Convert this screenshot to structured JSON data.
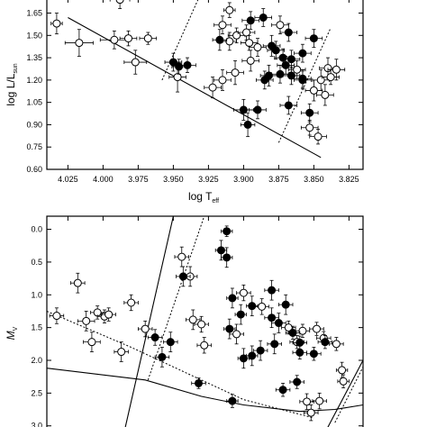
{
  "chart_data": [
    {
      "type": "scatter",
      "xlabel": {
        "main": "log T",
        "sub": "eff"
      },
      "ylabel": {
        "main": "log L/L",
        "sub": "sun"
      },
      "xlim": [
        4.04,
        3.815
      ],
      "ylim": [
        0.6,
        1.75
      ],
      "x_ticks": [
        "4.025",
        "4.000",
        "3.975",
        "3.950",
        "3.925",
        "3.900",
        "3.875",
        "3.850",
        "3.825"
      ],
      "x_tick_values": [
        4.025,
        4.0,
        3.975,
        3.95,
        3.925,
        3.9,
        3.875,
        3.85,
        3.825
      ],
      "y_ticks": [
        "0.60",
        "0.75",
        "0.90",
        "1.05",
        "1.20",
        "1.35",
        "1.50",
        "1.65"
      ],
      "y_tick_values": [
        0.6,
        0.75,
        0.9,
        1.05,
        1.2,
        1.35,
        1.5,
        1.65
      ],
      "lines": [
        {
          "style": "solid",
          "points": [
            [
              4.025,
              1.62
            ],
            [
              3.845,
              0.68
            ]
          ]
        },
        {
          "style": "dotted",
          "points": [
            [
              3.958,
              1.2
            ],
            [
              3.932,
              1.75
            ]
          ]
        },
        {
          "style": "dotted",
          "points": [
            [
              3.875,
              0.78
            ],
            [
              3.838,
              1.55
            ]
          ]
        }
      ],
      "series": [
        {
          "marker": "open",
          "points": [
            {
              "x": 4.033,
              "y": 1.58,
              "xe": 0.004,
              "ye": 0.07
            },
            {
              "x": 3.988,
              "y": 1.74,
              "xe": 0.007,
              "ye": 0.06
            },
            {
              "x": 4.017,
              "y": 1.45,
              "xe": 0.01,
              "ye": 0.09
            },
            {
              "x": 3.992,
              "y": 1.47,
              "xe": 0.01,
              "ye": 0.06
            },
            {
              "x": 3.982,
              "y": 1.48,
              "xe": 0.006,
              "ye": 0.05
            },
            {
              "x": 3.968,
              "y": 1.48,
              "xe": 0.006,
              "ye": 0.04
            },
            {
              "x": 3.977,
              "y": 1.32,
              "xe": 0.008,
              "ye": 0.08
            },
            {
              "x": 3.947,
              "y": 1.22,
              "xe": 0.006,
              "ye": 0.1
            },
            {
              "x": 3.91,
              "y": 1.67,
              "xe": 0.004,
              "ye": 0.05
            },
            {
              "x": 3.915,
              "y": 1.57,
              "xe": 0.006,
              "ye": 0.06
            },
            {
              "x": 3.905,
              "y": 1.5,
              "xe": 0.006,
              "ye": 0.05
            },
            {
              "x": 3.91,
              "y": 1.46,
              "xe": 0.005,
              "ye": 0.06
            },
            {
              "x": 3.898,
              "y": 1.52,
              "xe": 0.006,
              "ye": 0.05
            },
            {
              "x": 3.896,
              "y": 1.45,
              "xe": 0.006,
              "ye": 0.05
            },
            {
              "x": 3.89,
              "y": 1.42,
              "xe": 0.006,
              "ye": 0.06
            },
            {
              "x": 3.874,
              "y": 1.57,
              "xe": 0.006,
              "ye": 0.06
            },
            {
              "x": 3.906,
              "y": 1.25,
              "xe": 0.006,
              "ye": 0.08
            },
            {
              "x": 3.895,
              "y": 1.33,
              "xe": 0.006,
              "ye": 0.07
            },
            {
              "x": 3.915,
              "y": 1.2,
              "xe": 0.006,
              "ye": 0.07
            },
            {
              "x": 3.922,
              "y": 1.15,
              "xe": 0.006,
              "ye": 0.07
            },
            {
              "x": 3.862,
              "y": 1.27,
              "xe": 0.006,
              "ye": 0.06
            },
            {
              "x": 3.845,
              "y": 1.2,
              "xe": 0.006,
              "ye": 0.07
            },
            {
              "x": 3.84,
              "y": 1.28,
              "xe": 0.006,
              "ye": 0.07
            },
            {
              "x": 3.838,
              "y": 1.22,
              "xe": 0.006,
              "ye": 0.05
            },
            {
              "x": 3.842,
              "y": 1.1,
              "xe": 0.006,
              "ye": 0.07
            },
            {
              "x": 3.85,
              "y": 1.13,
              "xe": 0.006,
              "ye": 0.07
            },
            {
              "x": 3.853,
              "y": 0.88,
              "xe": 0.006,
              "ye": 0.05
            },
            {
              "x": 3.847,
              "y": 0.82,
              "xe": 0.006,
              "ye": 0.05
            },
            {
              "x": 3.834,
              "y": 1.27,
              "xe": 0.006,
              "ye": 0.07
            }
          ]
        },
        {
          "marker": "filled",
          "points": [
            {
              "x": 3.95,
              "y": 1.32,
              "xe": 0.006,
              "ye": 0.06
            },
            {
              "x": 3.946,
              "y": 1.29,
              "xe": 0.005,
              "ye": 0.05
            },
            {
              "x": 3.94,
              "y": 1.3,
              "xe": 0.006,
              "ye": 0.05
            },
            {
              "x": 3.917,
              "y": 1.47,
              "xe": 0.005,
              "ye": 0.07
            },
            {
              "x": 3.895,
              "y": 1.6,
              "xe": 0.006,
              "ye": 0.06
            },
            {
              "x": 3.886,
              "y": 1.62,
              "xe": 0.006,
              "ye": 0.06
            },
            {
              "x": 3.868,
              "y": 1.52,
              "xe": 0.006,
              "ye": 0.06
            },
            {
              "x": 3.85,
              "y": 1.48,
              "xe": 0.006,
              "ye": 0.06
            },
            {
              "x": 3.88,
              "y": 1.43,
              "xe": 0.006,
              "ye": 0.07
            },
            {
              "x": 3.877,
              "y": 1.4,
              "xe": 0.006,
              "ye": 0.06
            },
            {
              "x": 3.858,
              "y": 1.38,
              "xe": 0.006,
              "ye": 0.06
            },
            {
              "x": 3.872,
              "y": 1.35,
              "xe": 0.006,
              "ye": 0.06
            },
            {
              "x": 3.866,
              "y": 1.34,
              "xe": 0.006,
              "ye": 0.06
            },
            {
              "x": 3.87,
              "y": 1.3,
              "xe": 0.006,
              "ye": 0.06
            },
            {
              "x": 3.882,
              "y": 1.23,
              "xe": 0.006,
              "ye": 0.07
            },
            {
              "x": 3.874,
              "y": 1.24,
              "xe": 0.006,
              "ye": 0.06
            },
            {
              "x": 3.866,
              "y": 1.23,
              "xe": 0.006,
              "ye": 0.06
            },
            {
              "x": 3.858,
              "y": 1.21,
              "xe": 0.006,
              "ye": 0.06
            },
            {
              "x": 3.885,
              "y": 1.2,
              "xe": 0.006,
              "ye": 0.06
            },
            {
              "x": 3.9,
              "y": 1.0,
              "xe": 0.007,
              "ye": 0.07
            },
            {
              "x": 3.89,
              "y": 1.0,
              "xe": 0.006,
              "ye": 0.06
            },
            {
              "x": 3.897,
              "y": 0.9,
              "xe": 0.005,
              "ye": 0.08
            },
            {
              "x": 3.868,
              "y": 1.03,
              "xe": 0.006,
              "ye": 0.06
            },
            {
              "x": 3.853,
              "y": 0.98,
              "xe": 0.006,
              "ye": 0.06
            },
            {
              "x": 3.858,
              "y": 1.2,
              "xe": 0.006,
              "ye": 0.06
            }
          ]
        }
      ]
    },
    {
      "type": "scatter",
      "xlabel": "",
      "ylabel": {
        "main": "M",
        "sub": "V"
      },
      "xlim": [
        4.04,
        3.815
      ],
      "ylim": [
        3.1,
        -0.2
      ],
      "y_ticks": [
        "0.0",
        "0.5",
        "1.0",
        "1.5",
        "2.0",
        "2.5",
        "3.0"
      ],
      "y_tick_values": [
        0.0,
        0.5,
        1.0,
        1.5,
        2.0,
        2.5,
        3.0
      ],
      "lines": [
        {
          "style": "solid",
          "points": [
            [
              3.985,
              3.1
            ],
            [
              3.95,
              -0.2
            ]
          ]
        },
        {
          "style": "solid",
          "points": [
            [
              4.04,
              2.12
            ],
            [
              3.97,
              2.3
            ],
            [
              3.93,
              2.55
            ],
            [
              3.9,
              2.68
            ],
            [
              3.86,
              2.78
            ],
            [
              3.835,
              2.75
            ],
            [
              3.815,
              2.68
            ]
          ]
        },
        {
          "style": "solid",
          "points": [
            [
              3.842,
              3.1
            ],
            [
              3.815,
              2.0
            ]
          ]
        },
        {
          "style": "dotted",
          "points": [
            [
              3.968,
              2.3
            ],
            [
              3.928,
              -0.2
            ]
          ]
        },
        {
          "style": "dotted",
          "points": [
            [
              4.04,
              1.25
            ],
            [
              3.98,
              1.8
            ],
            [
              3.95,
              2.1
            ],
            [
              3.9,
              2.6
            ],
            [
              3.85,
              2.88
            ]
          ]
        },
        {
          "style": "dotted",
          "points": [
            [
              3.835,
              2.95
            ],
            [
              3.815,
              2.1
            ]
          ]
        }
      ],
      "series": [
        {
          "marker": "open",
          "points": [
            {
              "x": 4.033,
              "y": 1.32,
              "xe": 0.005,
              "ye": 0.12
            },
            {
              "x": 4.018,
              "y": 0.82,
              "xe": 0.005,
              "ye": 0.15
            },
            {
              "x": 4.012,
              "y": 1.4,
              "xe": 0.006,
              "ye": 0.15
            },
            {
              "x": 4.008,
              "y": 1.72,
              "xe": 0.006,
              "ye": 0.15
            },
            {
              "x": 4.004,
              "y": 1.27,
              "xe": 0.005,
              "ye": 0.1
            },
            {
              "x": 3.999,
              "y": 1.33,
              "xe": 0.005,
              "ye": 0.1
            },
            {
              "x": 3.996,
              "y": 1.3,
              "xe": 0.005,
              "ye": 0.1
            },
            {
              "x": 3.987,
              "y": 1.87,
              "xe": 0.005,
              "ye": 0.15
            },
            {
              "x": 3.98,
              "y": 1.12,
              "xe": 0.005,
              "ye": 0.12
            },
            {
              "x": 3.97,
              "y": 1.52,
              "xe": 0.005,
              "ye": 0.12
            },
            {
              "x": 3.944,
              "y": 0.42,
              "xe": 0.005,
              "ye": 0.15
            },
            {
              "x": 3.938,
              "y": 0.72,
              "xe": 0.005,
              "ye": 0.15
            },
            {
              "x": 3.936,
              "y": 1.38,
              "xe": 0.005,
              "ye": 0.15
            },
            {
              "x": 3.93,
              "y": 1.45,
              "xe": 0.005,
              "ye": 0.12
            },
            {
              "x": 3.928,
              "y": 1.77,
              "xe": 0.005,
              "ye": 0.12
            },
            {
              "x": 3.905,
              "y": 1.6,
              "xe": 0.005,
              "ye": 0.15
            },
            {
              "x": 3.9,
              "y": 0.97,
              "xe": 0.005,
              "ye": 0.12
            },
            {
              "x": 3.887,
              "y": 1.18,
              "xe": 0.005,
              "ye": 0.12
            },
            {
              "x": 3.868,
              "y": 1.5,
              "xe": 0.005,
              "ye": 0.1
            },
            {
              "x": 3.862,
              "y": 1.72,
              "xe": 0.005,
              "ye": 0.1
            },
            {
              "x": 3.858,
              "y": 1.55,
              "xe": 0.005,
              "ye": 0.1
            },
            {
              "x": 3.848,
              "y": 1.52,
              "xe": 0.005,
              "ye": 0.1
            },
            {
              "x": 3.843,
              "y": 1.66,
              "xe": 0.005,
              "ye": 0.1
            },
            {
              "x": 3.834,
              "y": 1.75,
              "xe": 0.005,
              "ye": 0.1
            },
            {
              "x": 3.83,
              "y": 2.15,
              "xe": 0.004,
              "ye": 0.12
            },
            {
              "x": 3.829,
              "y": 2.32,
              "xe": 0.004,
              "ye": 0.1
            },
            {
              "x": 3.855,
              "y": 2.63,
              "xe": 0.005,
              "ye": 0.12
            },
            {
              "x": 3.852,
              "y": 2.8,
              "xe": 0.005,
              "ye": 0.12
            },
            {
              "x": 3.846,
              "y": 2.62,
              "xe": 0.005,
              "ye": 0.12
            }
          ]
        },
        {
          "marker": "filled",
          "points": [
            {
              "x": 3.912,
              "y": 0.03,
              "xe": 0.004,
              "ye": 0.08
            },
            {
              "x": 3.916,
              "y": 0.32,
              "xe": 0.004,
              "ye": 0.15
            },
            {
              "x": 3.912,
              "y": 0.43,
              "xe": 0.004,
              "ye": 0.15
            },
            {
              "x": 3.943,
              "y": 0.72,
              "xe": 0.005,
              "ye": 0.15
            },
            {
              "x": 3.88,
              "y": 0.93,
              "xe": 0.005,
              "ye": 0.15
            },
            {
              "x": 3.87,
              "y": 1.15,
              "xe": 0.005,
              "ye": 0.15
            },
            {
              "x": 3.908,
              "y": 1.05,
              "xe": 0.004,
              "ye": 0.15
            },
            {
              "x": 3.894,
              "y": 1.17,
              "xe": 0.004,
              "ye": 0.15
            },
            {
              "x": 3.902,
              "y": 1.3,
              "xe": 0.004,
              "ye": 0.15
            },
            {
              "x": 3.88,
              "y": 1.35,
              "xe": 0.005,
              "ye": 0.15
            },
            {
              "x": 3.875,
              "y": 1.43,
              "xe": 0.005,
              "ye": 0.15
            },
            {
              "x": 3.91,
              "y": 1.52,
              "xe": 0.004,
              "ye": 0.15
            },
            {
              "x": 3.865,
              "y": 1.58,
              "xe": 0.005,
              "ye": 0.1
            },
            {
              "x": 3.86,
              "y": 1.73,
              "xe": 0.005,
              "ye": 0.1
            },
            {
              "x": 3.878,
              "y": 1.75,
              "xe": 0.005,
              "ye": 0.15
            },
            {
              "x": 3.888,
              "y": 1.85,
              "xe": 0.005,
              "ye": 0.15
            },
            {
              "x": 3.894,
              "y": 1.93,
              "xe": 0.004,
              "ye": 0.15
            },
            {
              "x": 3.9,
              "y": 1.97,
              "xe": 0.004,
              "ye": 0.15
            },
            {
              "x": 3.86,
              "y": 1.88,
              "xe": 0.005,
              "ye": 0.1
            },
            {
              "x": 3.85,
              "y": 1.9,
              "xe": 0.005,
              "ye": 0.1
            },
            {
              "x": 3.842,
              "y": 1.72,
              "xe": 0.005,
              "ye": 0.1
            },
            {
              "x": 3.963,
              "y": 1.65,
              "xe": 0.005,
              "ye": 0.12
            },
            {
              "x": 3.958,
              "y": 1.95,
              "xe": 0.005,
              "ye": 0.15
            },
            {
              "x": 3.952,
              "y": 1.72,
              "xe": 0.005,
              "ye": 0.15
            },
            {
              "x": 3.932,
              "y": 2.35,
              "xe": 0.005,
              "ye": 0.08
            },
            {
              "x": 3.908,
              "y": 2.62,
              "xe": 0.004,
              "ye": 0.1
            },
            {
              "x": 3.872,
              "y": 2.45,
              "xe": 0.005,
              "ye": 0.1
            },
            {
              "x": 3.862,
              "y": 2.33,
              "xe": 0.005,
              "ye": 0.1
            }
          ]
        }
      ]
    }
  ]
}
